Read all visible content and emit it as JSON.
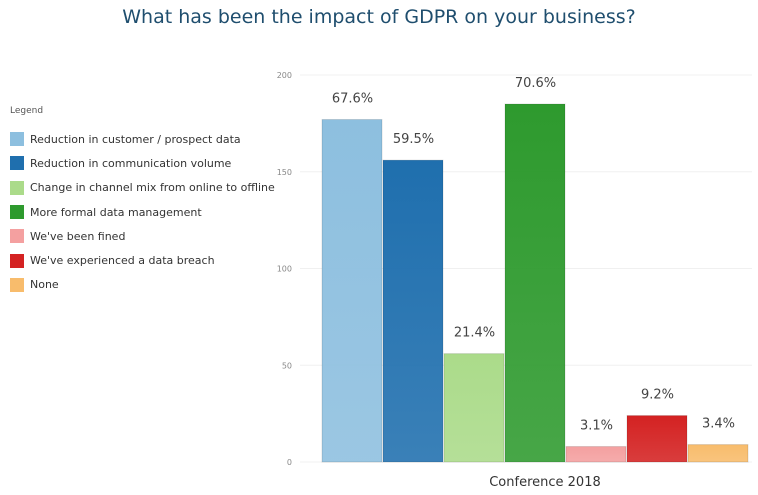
{
  "chart_data": {
    "type": "bar",
    "title": "What has been the impact of GDPR on your business?",
    "categories": [
      "Conference 2018"
    ],
    "legend_title": "Legend",
    "legend_position": "left",
    "ylim": [
      0,
      200
    ],
    "yticks": [
      0,
      50,
      100,
      150,
      200
    ],
    "grid": true,
    "series": [
      {
        "name": "Reduction in customer / prospect data",
        "value": 177,
        "label": "67.6%",
        "color": "#8dbfdf"
      },
      {
        "name": "Reduction in communication volume",
        "value": 156,
        "label": "59.5%",
        "color": "#1f6fae"
      },
      {
        "name": "Change in channel mix from online to offline",
        "value": 56,
        "label": "21.4%",
        "color": "#abdb8a"
      },
      {
        "name": "More formal data management",
        "value": 185,
        "label": "70.6%",
        "color": "#2e9a2e"
      },
      {
        "name": "We've been fined",
        "value": 8,
        "label": "3.1%",
        "color": "#f4a0a0"
      },
      {
        "name": "We've experienced a data breach",
        "value": 24,
        "label": "9.2%",
        "color": "#d42222"
      },
      {
        "name": "None",
        "value": 9,
        "label": "3.4%",
        "color": "#f8bc6c"
      }
    ]
  }
}
